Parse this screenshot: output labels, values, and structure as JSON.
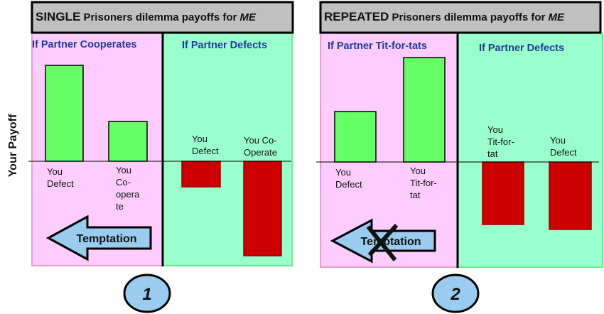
{
  "y_axis_label": "Your Payoff",
  "colors": {
    "positive": "#66ff66",
    "negative": "#cc0000",
    "pink_panel": "#ffccff",
    "green_panel": "#99ffcc",
    "title_bg": "#c0c0c0",
    "header_text": "#1f3a9c",
    "badge": "#99ccee",
    "arrow": "#99ccee"
  },
  "panels": [
    {
      "title_strong": "SINGLE",
      "title_rest": " Prisoners dilemma payoffs for ",
      "title_em": "ME",
      "left_header": "If Partner Cooperates",
      "right_header": "If Partner Defects",
      "bars": [
        {
          "label_lines": [
            "You",
            "Defect"
          ],
          "relative_payoff": 13.5
        },
        {
          "label_lines": [
            "You",
            "Co-",
            "opera",
            "te"
          ],
          "relative_payoff": 5.6
        },
        {
          "label_lines": [
            "You",
            "Defect"
          ],
          "relative_payoff": -3.6
        },
        {
          "label_lines": [
            "You Co-",
            "Operate"
          ],
          "relative_payoff": -13.3
        }
      ],
      "arrow_label": "Temptation",
      "arrow_crossed_out": false,
      "badge": "1"
    },
    {
      "title_strong": "REPEATED",
      "title_rest": " Prisoners dilemma payoffs for ",
      "title_em": "ME",
      "left_header": "If Partner Tit-for-tats",
      "right_header": "If Partner Defects",
      "bars": [
        {
          "label_lines": [
            "You",
            "Defect"
          ],
          "relative_payoff": 7.1
        },
        {
          "label_lines": [
            "You",
            "Tit-for-",
            "tat"
          ],
          "relative_payoff": 14.7
        },
        {
          "label_lines": [
            "You",
            "Tit-for-",
            "tat"
          ],
          "relative_payoff": -8.8
        },
        {
          "label_lines": [
            "You",
            "Defect"
          ],
          "relative_payoff": -9.5
        }
      ],
      "arrow_label": "Temptation",
      "arrow_crossed_out": true,
      "badge": "2"
    }
  ]
}
